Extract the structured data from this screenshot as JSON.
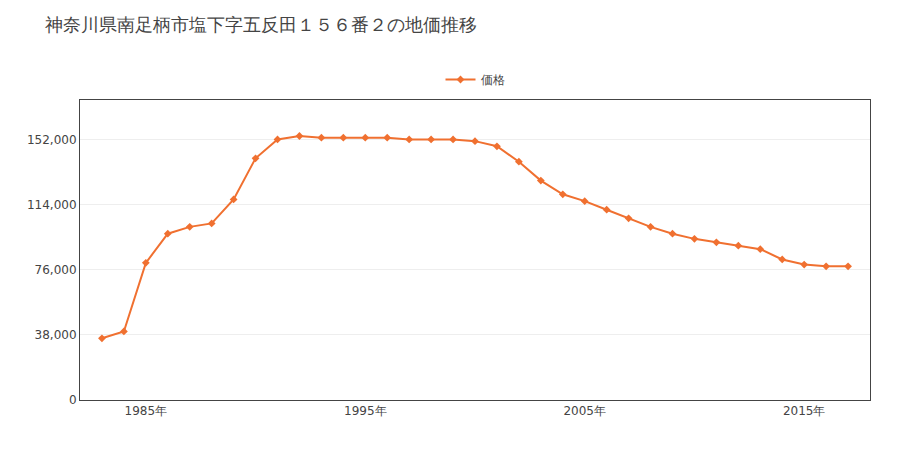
{
  "chart_data": {
    "type": "line",
    "title": "神奈川県南足柄市塩下字五反田１５６番２の地価推移",
    "x": [
      1983,
      1984,
      1985,
      1986,
      1987,
      1988,
      1989,
      1990,
      1991,
      1992,
      1993,
      1994,
      1995,
      1996,
      1997,
      1998,
      1999,
      2000,
      2001,
      2002,
      2003,
      2004,
      2005,
      2006,
      2007,
      2008,
      2009,
      2010,
      2011,
      2012,
      2013,
      2014,
      2015,
      2016,
      2017
    ],
    "series": [
      {
        "name": "価格",
        "color": "#f07030",
        "marker": "diamond",
        "values": [
          36000,
          40000,
          80000,
          97000,
          101000,
          103000,
          117000,
          141000,
          152000,
          154000,
          153000,
          153000,
          153000,
          153000,
          152000,
          152000,
          152000,
          151000,
          148000,
          139000,
          128000,
          120000,
          116000,
          111000,
          106000,
          101000,
          97000,
          94000,
          92000,
          90000,
          88000,
          82000,
          79000,
          78000,
          78000
        ]
      }
    ],
    "xlim": [
      1982,
      2018
    ],
    "xticks": [
      {
        "value": 1985,
        "label": "1985年"
      },
      {
        "value": 1995,
        "label": "1995年"
      },
      {
        "value": 2005,
        "label": "2005年"
      },
      {
        "value": 2015,
        "label": "2015年"
      }
    ],
    "ylim": [
      0,
      175000
    ],
    "yticks": [
      0,
      {
        "value": 38000,
        "label": "38,000"
      },
      {
        "value": 76000,
        "label": "76,000"
      },
      {
        "value": 114000,
        "label": "114,000"
      },
      {
        "value": 152000,
        "label": "152,000"
      }
    ],
    "grid": true,
    "legend": "top"
  }
}
